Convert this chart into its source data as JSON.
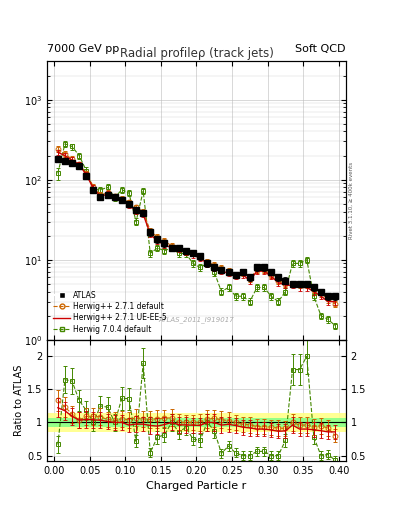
{
  "title": "Radial profileρ (track jets)",
  "top_left_label": "7000 GeV pp",
  "top_right_label": "Soft QCD",
  "xlabel": "Charged Particle r",
  "ylabel_ratio": "Ratio to ATLAS",
  "right_label_main": "Rivet 3.1.10, ≥ 400k events",
  "watermark": "ATLAS_2011_I919017",
  "ylim_main": [
    1.0,
    3000
  ],
  "ylim_ratio": [
    0.42,
    2.25
  ],
  "xlim": [
    -0.01,
    0.41
  ],
  "atlas_x": [
    0.005,
    0.015,
    0.025,
    0.035,
    0.045,
    0.055,
    0.065,
    0.075,
    0.085,
    0.095,
    0.105,
    0.115,
    0.125,
    0.135,
    0.145,
    0.155,
    0.165,
    0.175,
    0.185,
    0.195,
    0.205,
    0.215,
    0.225,
    0.235,
    0.245,
    0.255,
    0.265,
    0.275,
    0.285,
    0.295,
    0.305,
    0.315,
    0.325,
    0.335,
    0.345,
    0.355,
    0.365,
    0.375,
    0.385,
    0.395
  ],
  "atlas_y": [
    180,
    170,
    160,
    150,
    110,
    75,
    60,
    65,
    60,
    55,
    50,
    42,
    38,
    22,
    18,
    16,
    14,
    14,
    13,
    12,
    11,
    9,
    8,
    7.5,
    7,
    6.5,
    7,
    6,
    8,
    8,
    7,
    6,
    5.5,
    5,
    5,
    5,
    4.5,
    4,
    3.5,
    3.5
  ],
  "atlas_yerr": [
    15,
    14,
    13,
    12,
    9,
    6,
    5,
    5,
    5,
    4.5,
    4,
    3.5,
    3,
    2,
    1.6,
    1.4,
    1.2,
    1.2,
    1.1,
    1,
    0.95,
    0.8,
    0.7,
    0.65,
    0.6,
    0.55,
    0.6,
    0.55,
    0.7,
    0.7,
    0.6,
    0.55,
    0.5,
    0.45,
    0.45,
    0.45,
    0.4,
    0.37,
    0.33,
    0.33
  ],
  "hwpp_def_x": [
    0.005,
    0.015,
    0.025,
    0.035,
    0.045,
    0.055,
    0.065,
    0.075,
    0.085,
    0.095,
    0.105,
    0.115,
    0.125,
    0.135,
    0.145,
    0.155,
    0.165,
    0.175,
    0.185,
    0.195,
    0.205,
    0.215,
    0.225,
    0.235,
    0.245,
    0.255,
    0.265,
    0.275,
    0.285,
    0.295,
    0.305,
    0.315,
    0.325,
    0.335,
    0.345,
    0.355,
    0.365,
    0.375,
    0.385,
    0.395
  ],
  "hwpp_def_y": [
    240,
    210,
    180,
    155,
    120,
    82,
    65,
    68,
    62,
    58,
    52,
    45,
    40,
    23,
    19,
    17,
    15,
    14,
    13,
    12,
    11,
    9.5,
    8.5,
    7.8,
    7.2,
    6.5,
    6.8,
    5.8,
    7.5,
    7.5,
    6.5,
    5.5,
    5,
    5,
    4.8,
    4.8,
    4.2,
    3.8,
    3.2,
    2.8
  ],
  "hwpp_def_yerr": [
    20,
    18,
    15,
    13,
    10,
    7,
    5.5,
    5.5,
    5,
    4.8,
    4.2,
    3.8,
    3.2,
    2.1,
    1.7,
    1.5,
    1.3,
    1.2,
    1.1,
    1.0,
    0.95,
    0.85,
    0.75,
    0.68,
    0.62,
    0.55,
    0.58,
    0.5,
    0.65,
    0.65,
    0.55,
    0.48,
    0.43,
    0.43,
    0.42,
    0.42,
    0.37,
    0.33,
    0.28,
    0.24
  ],
  "hwpp_uee5_x": [
    0.005,
    0.015,
    0.025,
    0.035,
    0.045,
    0.055,
    0.065,
    0.075,
    0.085,
    0.095,
    0.105,
    0.115,
    0.125,
    0.135,
    0.145,
    0.155,
    0.165,
    0.175,
    0.185,
    0.195,
    0.205,
    0.215,
    0.225,
    0.235,
    0.245,
    0.255,
    0.265,
    0.275,
    0.285,
    0.295,
    0.305,
    0.315,
    0.325,
    0.335,
    0.345,
    0.355,
    0.365,
    0.375,
    0.385,
    0.395
  ],
  "hwpp_uee5_y": [
    220,
    200,
    175,
    155,
    115,
    78,
    62,
    66,
    60,
    55,
    48,
    41,
    37,
    21,
    17,
    15.5,
    14,
    13.5,
    12.5,
    11.5,
    10.5,
    9,
    8,
    7.2,
    6.8,
    6.2,
    6.5,
    5.5,
    7.2,
    7.2,
    6.2,
    5.2,
    4.8,
    4.8,
    4.5,
    4.5,
    4,
    3.5,
    3,
    3
  ],
  "hwpp_uee5_yerr": [
    18,
    17,
    15,
    13,
    10,
    7,
    5,
    5.5,
    5,
    4.5,
    4,
    3.5,
    3,
    1.9,
    1.5,
    1.3,
    1.2,
    1.15,
    1.05,
    0.95,
    0.9,
    0.8,
    0.7,
    0.62,
    0.58,
    0.53,
    0.55,
    0.47,
    0.62,
    0.62,
    0.53,
    0.45,
    0.41,
    0.41,
    0.39,
    0.39,
    0.35,
    0.3,
    0.26,
    0.26
  ],
  "hw704_x": [
    0.005,
    0.015,
    0.025,
    0.035,
    0.045,
    0.055,
    0.065,
    0.075,
    0.085,
    0.095,
    0.105,
    0.115,
    0.125,
    0.135,
    0.145,
    0.155,
    0.165,
    0.175,
    0.185,
    0.195,
    0.205,
    0.215,
    0.225,
    0.235,
    0.245,
    0.255,
    0.265,
    0.275,
    0.285,
    0.295,
    0.305,
    0.315,
    0.325,
    0.335,
    0.345,
    0.355,
    0.365,
    0.375,
    0.385,
    0.395
  ],
  "hw704_y": [
    120,
    280,
    260,
    200,
    130,
    75,
    75,
    80,
    60,
    75,
    68,
    30,
    72,
    12,
    14,
    13,
    14,
    12,
    12,
    9,
    8,
    9,
    7,
    4,
    4.5,
    3.5,
    3.5,
    3,
    4.5,
    4.5,
    3.5,
    3,
    4,
    9,
    9,
    10,
    3.5,
    2,
    1.8,
    1.5
  ],
  "hw704_yerr": [
    20,
    25,
    23,
    18,
    12,
    7,
    7,
    7.5,
    5.5,
    7,
    6.2,
    3,
    6.5,
    1.2,
    1.3,
    1.2,
    1.3,
    1.1,
    1.1,
    0.85,
    0.75,
    0.85,
    0.65,
    0.4,
    0.42,
    0.33,
    0.33,
    0.28,
    0.42,
    0.42,
    0.33,
    0.28,
    0.38,
    0.85,
    0.85,
    0.95,
    0.33,
    0.19,
    0.17,
    0.14
  ],
  "ratio_band_yellow": 0.15,
  "ratio_band_green": 0.07,
  "atlas_color": "#000000",
  "hwpp_def_color": "#cc6600",
  "hwpp_uee5_color": "#cc0000",
  "hw704_color": "#448800",
  "bg_color": "#ffffff"
}
